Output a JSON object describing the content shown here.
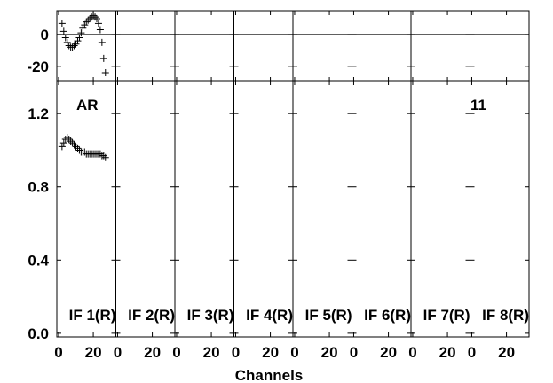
{
  "chart_data": {
    "type": "scatter",
    "xlabel": "Channels",
    "corner_label": "AR",
    "baseline_number": "11",
    "panels": [
      "IF 1(R)",
      "IF 2(R)",
      "IF 3(R)",
      "IF 4(R)",
      "IF 5(R)",
      "IF 6(R)",
      "IF 7(R)",
      "IF 8(R)"
    ],
    "x_tick_labels": [
      "0",
      "20"
    ],
    "x_ticks": [
      0,
      20
    ],
    "xlim": [
      -1,
      33
    ],
    "phase": {
      "ylim": [
        -29,
        15
      ],
      "y_ticks": [
        0,
        -20
      ],
      "y_tick_labels": [
        "0",
        "-20"
      ],
      "points": [
        {
          "x": 2,
          "y": 7
        },
        {
          "x": 3,
          "y": 2
        },
        {
          "x": 4,
          "y": -2
        },
        {
          "x": 5,
          "y": -5
        },
        {
          "x": 6,
          "y": -7
        },
        {
          "x": 7,
          "y": -8
        },
        {
          "x": 8,
          "y": -8
        },
        {
          "x": 9,
          "y": -7
        },
        {
          "x": 10,
          "y": -6
        },
        {
          "x": 11,
          "y": -4
        },
        {
          "x": 12,
          "y": -2
        },
        {
          "x": 13,
          "y": 1
        },
        {
          "x": 14,
          "y": 4
        },
        {
          "x": 15,
          "y": 6
        },
        {
          "x": 16,
          "y": 8
        },
        {
          "x": 17,
          "y": 9
        },
        {
          "x": 18,
          "y": 10
        },
        {
          "x": 19,
          "y": 11
        },
        {
          "x": 20,
          "y": 12
        },
        {
          "x": 21,
          "y": 11
        },
        {
          "x": 22,
          "y": 10
        },
        {
          "x": 23,
          "y": 7
        },
        {
          "x": 24,
          "y": 3
        },
        {
          "x": 25,
          "y": -5
        },
        {
          "x": 26,
          "y": -15
        },
        {
          "x": 27,
          "y": -24
        }
      ]
    },
    "amplitude": {
      "ylim": [
        -0.02,
        1.38
      ],
      "y_ticks": [
        0,
        0.4,
        0.8,
        1.2
      ],
      "y_tick_labels": [
        "0.0",
        "0.4",
        "0.8",
        "1.2"
      ],
      "points": [
        {
          "x": 2,
          "y": 1.02
        },
        {
          "x": 3,
          "y": 1.04
        },
        {
          "x": 4,
          "y": 1.06
        },
        {
          "x": 5,
          "y": 1.07
        },
        {
          "x": 6,
          "y": 1.06
        },
        {
          "x": 7,
          "y": 1.05
        },
        {
          "x": 8,
          "y": 1.04
        },
        {
          "x": 9,
          "y": 1.03
        },
        {
          "x": 10,
          "y": 1.02
        },
        {
          "x": 11,
          "y": 1.01
        },
        {
          "x": 12,
          "y": 1.0
        },
        {
          "x": 13,
          "y": 0.99
        },
        {
          "x": 14,
          "y": 0.99
        },
        {
          "x": 15,
          "y": 0.99
        },
        {
          "x": 16,
          "y": 0.98
        },
        {
          "x": 17,
          "y": 0.98
        },
        {
          "x": 18,
          "y": 0.98
        },
        {
          "x": 19,
          "y": 0.98
        },
        {
          "x": 20,
          "y": 0.98
        },
        {
          "x": 21,
          "y": 0.98
        },
        {
          "x": 22,
          "y": 0.98
        },
        {
          "x": 23,
          "y": 0.98
        },
        {
          "x": 24,
          "y": 0.98
        },
        {
          "x": 25,
          "y": 0.97
        },
        {
          "x": 26,
          "y": 0.97
        },
        {
          "x": 27,
          "y": 0.96
        }
      ]
    }
  }
}
